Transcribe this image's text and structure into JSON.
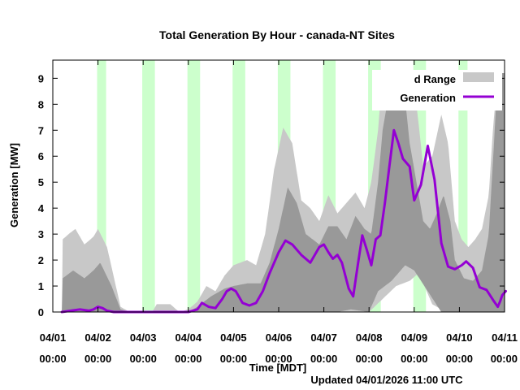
{
  "chart_data": {
    "type": "line",
    "title": "Total Generation By Hour - canada-NT Sites",
    "xlabel": "Time [MDT]",
    "ylabel": "Generation [MW]",
    "footer": "Updated 04/01/2026 11:00 UTC",
    "xlim": [
      0,
      10
    ],
    "ylim": [
      0,
      9.7
    ],
    "y_ticks": [
      0,
      1,
      2,
      3,
      4,
      5,
      6,
      7,
      8,
      9
    ],
    "x_ticks": [
      {
        "x": 0,
        "date": "04/01",
        "time": "00:00"
      },
      {
        "x": 1,
        "date": "04/02",
        "time": "00:00"
      },
      {
        "x": 2,
        "date": "04/03",
        "time": "00:00"
      },
      {
        "x": 3,
        "date": "04/04",
        "time": "00:00"
      },
      {
        "x": 4,
        "date": "04/05",
        "time": "00:00"
      },
      {
        "x": 5,
        "date": "04/06",
        "time": "00:00"
      },
      {
        "x": 6,
        "date": "04/07",
        "time": "00:00"
      },
      {
        "x": 7,
        "date": "04/08",
        "time": "00:00"
      },
      {
        "x": 8,
        "date": "04/09",
        "time": "00:00"
      },
      {
        "x": 9,
        "date": "04/10",
        "time": "00:00"
      },
      {
        "x": 10,
        "date": "04/11",
        "time": "00:00"
      }
    ],
    "legend": {
      "placement": "top-right",
      "entries": [
        {
          "label": "Expected Range",
          "shown_text": "d Range",
          "color": "#c8c8c8"
        },
        {
          "label": "Generation",
          "shown_text": "Generation",
          "color": "#9400d3"
        }
      ]
    },
    "night_bands": [
      [
        0.98,
        1.18
      ],
      [
        1.98,
        2.26
      ],
      [
        2.98,
        3.26
      ],
      [
        3.98,
        4.26
      ],
      [
        4.98,
        5.26
      ],
      [
        5.98,
        6.26
      ],
      [
        6.98,
        7.26
      ],
      [
        7.98,
        8.26
      ],
      [
        8.98,
        9.18
      ]
    ],
    "colors": {
      "night": "#ccffcc",
      "outer_band": "#c8c8c8",
      "inner_band": "#999999",
      "generation": "#9400d3"
    },
    "series": [
      {
        "name": "Generation",
        "x": [
          0.2,
          0.4,
          0.6,
          0.8,
          0.9,
          1.0,
          1.1,
          1.2,
          1.35,
          1.5,
          2.0,
          2.5,
          3.0,
          3.2,
          3.3,
          3.45,
          3.6,
          3.75,
          3.85,
          3.95,
          4.05,
          4.2,
          4.35,
          4.5,
          4.65,
          4.8,
          5.0,
          5.15,
          5.3,
          5.5,
          5.7,
          5.9,
          6.0,
          6.1,
          6.2,
          6.3,
          6.4,
          6.55,
          6.65,
          6.75,
          6.85,
          6.95,
          7.05,
          7.15,
          7.25,
          7.35,
          7.45,
          7.55,
          7.65,
          7.75,
          7.9,
          8.0,
          8.15,
          8.3,
          8.45,
          8.6,
          8.75,
          8.9,
          9.05,
          9.15,
          9.3,
          9.45,
          9.6,
          9.75,
          9.85,
          9.9,
          9.95,
          10.0,
          10.05
        ],
        "y": [
          0,
          0.05,
          0.1,
          0.05,
          0.1,
          0.2,
          0.15,
          0.05,
          0,
          0,
          0,
          0,
          0,
          0.1,
          0.35,
          0.2,
          0.15,
          0.5,
          0.8,
          0.9,
          0.8,
          0.35,
          0.25,
          0.35,
          0.8,
          1.5,
          2.3,
          2.75,
          2.6,
          2.2,
          1.9,
          2.5,
          2.6,
          2.3,
          2.05,
          2.2,
          1.9,
          0.9,
          0.6,
          1.8,
          2.95,
          2.4,
          1.8,
          2.8,
          2.95,
          4.2,
          5.6,
          7.0,
          6.5,
          5.9,
          5.6,
          4.3,
          4.9,
          6.4,
          5.1,
          2.65,
          1.75,
          1.65,
          1.8,
          1.95,
          1.7,
          0.95,
          0.85,
          0.45,
          0.2,
          0.4,
          0.65,
          0.75,
          0.8
        ]
      }
    ]
  }
}
